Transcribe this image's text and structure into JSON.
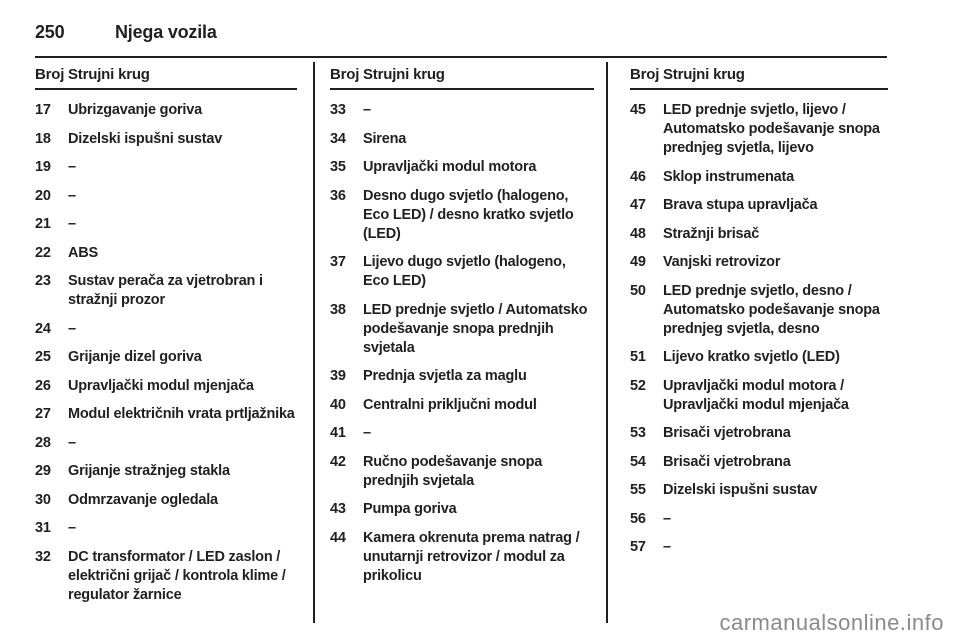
{
  "page": {
    "number": "250",
    "title": "Njega vozila",
    "watermark": "carmanualsonline.info"
  },
  "table": {
    "col_header_num": "Broj",
    "col_header_circuit": "Strujni krug",
    "columns": [
      {
        "rows": [
          {
            "num": "17",
            "label": "Ubrizgavanje goriva"
          },
          {
            "num": "18",
            "label": "Dizelski ispušni sustav"
          },
          {
            "num": "19",
            "label": "–"
          },
          {
            "num": "20",
            "label": "–"
          },
          {
            "num": "21",
            "label": "–"
          },
          {
            "num": "22",
            "label": "ABS"
          },
          {
            "num": "23",
            "label": "Sustav perača za vjetrobran i stražnji prozor"
          },
          {
            "num": "24",
            "label": "–"
          },
          {
            "num": "25",
            "label": "Grijanje dizel goriva"
          },
          {
            "num": "26",
            "label": "Upravljački modul mjenjača"
          },
          {
            "num": "27",
            "label": "Modul električnih vrata prtljažnika"
          },
          {
            "num": "28",
            "label": "–"
          },
          {
            "num": "29",
            "label": "Grijanje stražnjeg stakla"
          },
          {
            "num": "30",
            "label": "Odmrzavanje ogledala"
          },
          {
            "num": "31",
            "label": "–"
          },
          {
            "num": "32",
            "label": "DC transformator / LED zaslon / električni grijač / kontrola klime / regulator žarnice"
          }
        ]
      },
      {
        "rows": [
          {
            "num": "33",
            "label": "–"
          },
          {
            "num": "34",
            "label": "Sirena"
          },
          {
            "num": "35",
            "label": "Upravljački modul motora"
          },
          {
            "num": "36",
            "label": "Desno dugo svjetlo (halogeno, Eco LED) / desno kratko svjetlo (LED)"
          },
          {
            "num": "37",
            "label": "Lijevo dugo svjetlo (halogeno, Eco LED)"
          },
          {
            "num": "38",
            "label": "LED prednje svjetlo / Automatsko podešavanje snopa prednjih svjetala"
          },
          {
            "num": "39",
            "label": "Prednja svjetla za maglu"
          },
          {
            "num": "40",
            "label": "Centralni priključni modul"
          },
          {
            "num": "41",
            "label": "–"
          },
          {
            "num": "42",
            "label": "Ručno podešavanje snopa prednjih svjetala"
          },
          {
            "num": "43",
            "label": "Pumpa goriva"
          },
          {
            "num": "44",
            "label": "Kamera okrenuta prema natrag / unutarnji retrovizor / modul za prikolicu"
          }
        ]
      },
      {
        "rows": [
          {
            "num": "45",
            "label": "LED prednje svjetlo, lijevo / Automatsko podešavanje snopa prednjeg svjetla, lijevo"
          },
          {
            "num": "46",
            "label": "Sklop instrumenata"
          },
          {
            "num": "47",
            "label": "Brava stupa upravljača"
          },
          {
            "num": "48",
            "label": "Stražnji brisač"
          },
          {
            "num": "49",
            "label": "Vanjski retrovizor"
          },
          {
            "num": "50",
            "label": "LED prednje svjetlo, desno / Automatsko podešavanje snopa prednjeg svjetla, desno"
          },
          {
            "num": "51",
            "label": "Lijevo kratko svjetlo (LED)"
          },
          {
            "num": "52",
            "label": "Upravljački modul motora / Upravljački modul mjenjača"
          },
          {
            "num": "53",
            "label": "Brisači vjetrobrana"
          },
          {
            "num": "54",
            "label": "Brisači vjetrobrana"
          },
          {
            "num": "55",
            "label": "Dizelski ispušni sustav"
          },
          {
            "num": "56",
            "label": "–"
          },
          {
            "num": "57",
            "label": "–"
          }
        ]
      }
    ]
  }
}
